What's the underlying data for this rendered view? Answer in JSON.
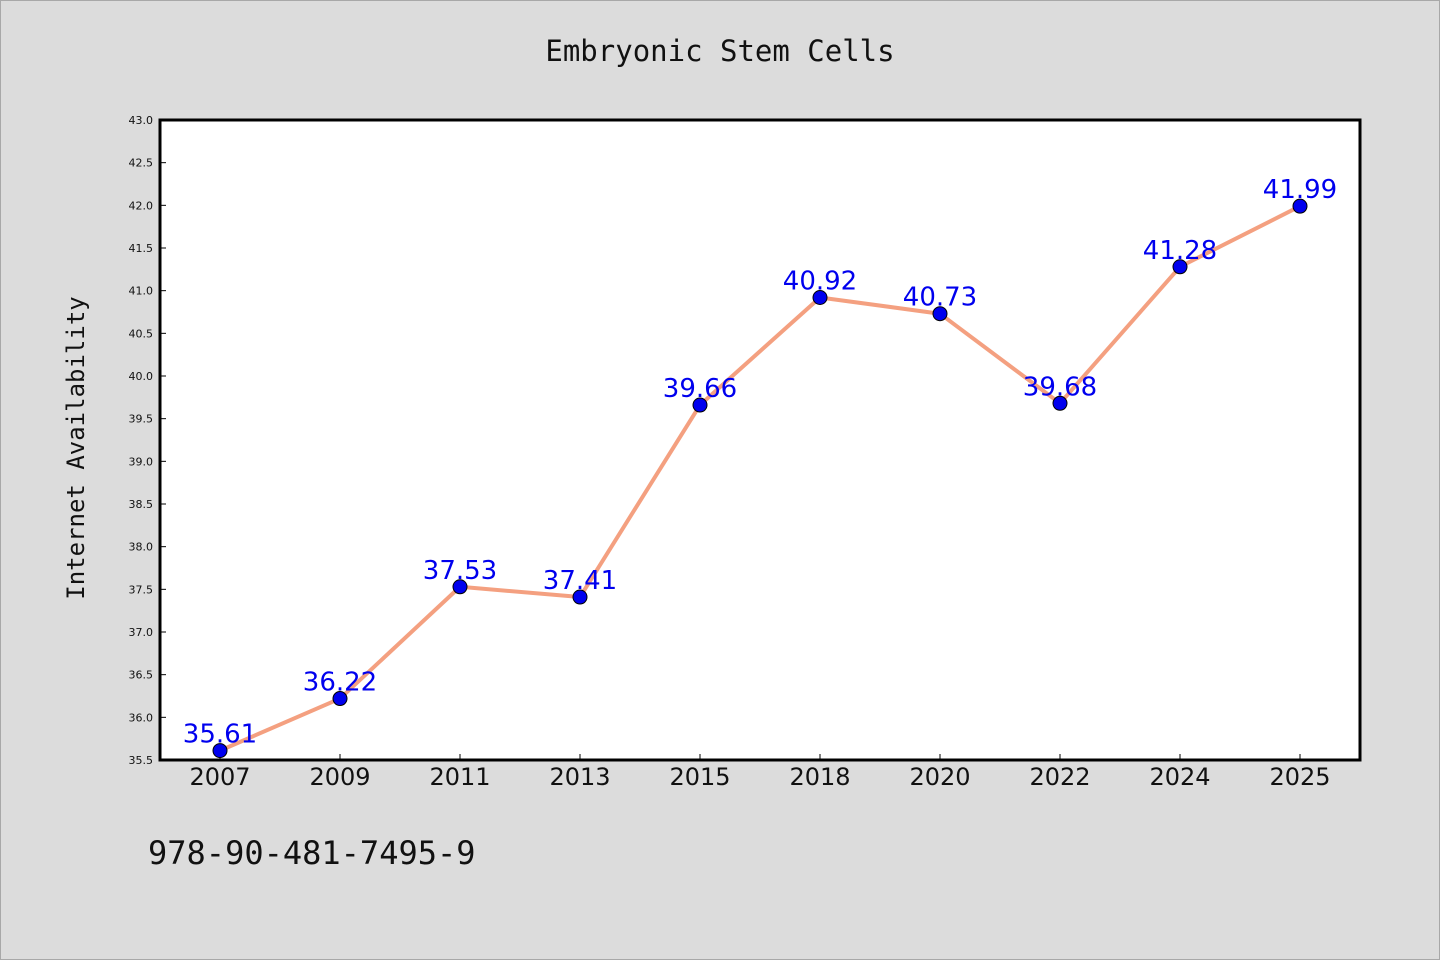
{
  "title": "Embryonic Stem Cells",
  "footer_code": "978-90-481-7495-9",
  "colors": {
    "background": "#dcdcdc",
    "plot_background": "#ffffff",
    "line": "#f4a080",
    "marker": "#0000ee",
    "label": "#0000ee"
  },
  "chart_data": {
    "type": "line",
    "title": "Embryonic Stem Cells",
    "xlabel": "",
    "ylabel": "Internet Availability",
    "categories": [
      "2007",
      "2009",
      "2011",
      "2013",
      "2015",
      "2018",
      "2020",
      "2022",
      "2024",
      "2025"
    ],
    "series": [
      {
        "values": [
          35.61,
          36.22,
          37.53,
          37.41,
          39.66,
          40.92,
          40.73,
          39.68,
          41.28,
          41.99
        ],
        "data_labels": [
          "35.61",
          "36.22",
          "37.53",
          "37.41",
          "39.66",
          "40.92",
          "40.73",
          "39.68",
          "41.28",
          "41.99"
        ]
      }
    ],
    "ylim": [
      35.5,
      43.0
    ],
    "yticks": [
      "35.5",
      "36.0",
      "36.5",
      "37.0",
      "37.5",
      "38.0",
      "38.5",
      "39.0",
      "39.5",
      "40.0",
      "40.5",
      "41.0",
      "41.5",
      "42.0",
      "42.5",
      "43.0"
    ],
    "grid": false,
    "legend": "none"
  }
}
